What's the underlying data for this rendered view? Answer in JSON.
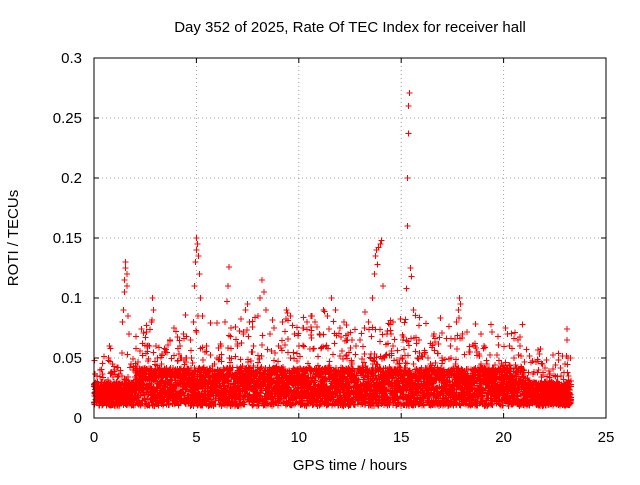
{
  "chart_data": {
    "type": "scatter",
    "title": "Day 352 of 2025, Rate Of TEC Index for receiver hall",
    "xlabel": "GPS time / hours",
    "ylabel": "ROTI / TECUs",
    "xlim": [
      0,
      25
    ],
    "ylim": [
      0,
      0.3
    ],
    "x_ticks": [
      0,
      5,
      10,
      15,
      20,
      25
    ],
    "x_tick_labels": [
      "0",
      "5",
      "10",
      "15",
      "20",
      "25"
    ],
    "y_ticks": [
      0,
      0.05,
      0.1,
      0.15,
      0.2,
      0.25,
      0.3
    ],
    "y_tick_labels": [
      "0",
      "0.05",
      "0.1",
      "0.15",
      "0.2",
      "0.25",
      "0.3"
    ],
    "grid": true,
    "marker": "plus",
    "color": "#ff0000",
    "series": [
      {
        "name": "ROTI",
        "points": [
          [
            0.05,
            0.02
          ],
          [
            0.15,
            0.035
          ],
          [
            0.3,
            0.04
          ],
          [
            0.4,
            0.03
          ],
          [
            0.6,
            0.025
          ],
          [
            0.7,
            0.05
          ],
          [
            0.75,
            0.06
          ],
          [
            0.8,
            0.058
          ],
          [
            0.9,
            0.045
          ],
          [
            1.0,
            0.04
          ],
          [
            1.2,
            0.035
          ],
          [
            1.4,
            0.08
          ],
          [
            1.45,
            0.09
          ],
          [
            1.5,
            0.105
          ],
          [
            1.5,
            0.115
          ],
          [
            1.55,
            0.125
          ],
          [
            1.55,
            0.13
          ],
          [
            1.6,
            0.12
          ],
          [
            1.6,
            0.11
          ],
          [
            1.65,
            0.085
          ],
          [
            1.7,
            0.07
          ],
          [
            1.8,
            0.045
          ],
          [
            1.9,
            0.04
          ],
          [
            2.1,
            0.03
          ],
          [
            2.3,
            0.025
          ],
          [
            2.5,
            0.04
          ],
          [
            2.7,
            0.06
          ],
          [
            2.8,
            0.08
          ],
          [
            2.85,
            0.1
          ],
          [
            2.9,
            0.09
          ],
          [
            3.1,
            0.05
          ],
          [
            3.3,
            0.045
          ],
          [
            3.5,
            0.055
          ],
          [
            3.7,
            0.065
          ],
          [
            3.9,
            0.075
          ],
          [
            4.0,
            0.072
          ],
          [
            4.2,
            0.06
          ],
          [
            4.5,
            0.05
          ],
          [
            4.7,
            0.065
          ],
          [
            4.85,
            0.08
          ],
          [
            4.9,
            0.11
          ],
          [
            4.95,
            0.13
          ],
          [
            5.0,
            0.14
          ],
          [
            5.0,
            0.15
          ],
          [
            5.05,
            0.145
          ],
          [
            5.1,
            0.135
          ],
          [
            5.15,
            0.12
          ],
          [
            5.2,
            0.1
          ],
          [
            5.3,
            0.085
          ],
          [
            5.5,
            0.06
          ],
          [
            5.7,
            0.04
          ],
          [
            6.0,
            0.05
          ],
          [
            6.2,
            0.06
          ],
          [
            6.4,
            0.08
          ],
          [
            6.5,
            0.097
          ],
          [
            6.55,
            0.11
          ],
          [
            6.6,
            0.126
          ],
          [
            6.7,
            0.075
          ],
          [
            7.0,
            0.06
          ],
          [
            7.3,
            0.07
          ],
          [
            7.4,
            0.09
          ],
          [
            7.5,
            0.095
          ],
          [
            7.6,
            0.08
          ],
          [
            7.8,
            0.06
          ],
          [
            8.0,
            0.085
          ],
          [
            8.1,
            0.1
          ],
          [
            8.2,
            0.115
          ],
          [
            8.3,
            0.105
          ],
          [
            8.4,
            0.09
          ],
          [
            8.6,
            0.07
          ],
          [
            8.8,
            0.075
          ],
          [
            9.0,
            0.06
          ],
          [
            9.2,
            0.08
          ],
          [
            9.4,
            0.09
          ],
          [
            9.6,
            0.085
          ],
          [
            9.8,
            0.07
          ],
          [
            10.0,
            0.06
          ],
          [
            10.2,
            0.075
          ],
          [
            10.4,
            0.08
          ],
          [
            10.6,
            0.085
          ],
          [
            10.8,
            0.08
          ],
          [
            11.0,
            0.07
          ],
          [
            11.2,
            0.09
          ],
          [
            11.4,
            0.085
          ],
          [
            11.6,
            0.1
          ],
          [
            11.8,
            0.09
          ],
          [
            12.0,
            0.075
          ],
          [
            12.2,
            0.08
          ],
          [
            12.4,
            0.07
          ],
          [
            12.6,
            0.065
          ],
          [
            12.8,
            0.06
          ],
          [
            13.0,
            0.065
          ],
          [
            13.2,
            0.075
          ],
          [
            13.4,
            0.08
          ],
          [
            13.6,
            0.1
          ],
          [
            13.7,
            0.12
          ],
          [
            13.75,
            0.135
          ],
          [
            13.8,
            0.14
          ],
          [
            13.85,
            0.128
          ],
          [
            13.9,
            0.142
          ],
          [
            14.0,
            0.145
          ],
          [
            14.05,
            0.148
          ],
          [
            14.1,
            0.11
          ],
          [
            14.3,
            0.07
          ],
          [
            14.6,
            0.06
          ],
          [
            15.0,
            0.05
          ],
          [
            15.1,
            0.065
          ],
          [
            15.2,
            0.082
          ],
          [
            15.25,
            0.108
          ],
          [
            15.3,
            0.16
          ],
          [
            15.3,
            0.2
          ],
          [
            15.35,
            0.237
          ],
          [
            15.35,
            0.26
          ],
          [
            15.4,
            0.271
          ],
          [
            15.45,
            0.125
          ],
          [
            15.5,
            0.118
          ],
          [
            15.6,
            0.09
          ],
          [
            15.8,
            0.05
          ],
          [
            16.0,
            0.04
          ],
          [
            16.3,
            0.05
          ],
          [
            16.6,
            0.07
          ],
          [
            17.0,
            0.05
          ],
          [
            17.4,
            0.06
          ],
          [
            17.7,
            0.08
          ],
          [
            17.8,
            0.09
          ],
          [
            17.85,
            0.1
          ],
          [
            17.9,
            0.095
          ],
          [
            18.0,
            0.07
          ],
          [
            18.3,
            0.055
          ],
          [
            18.6,
            0.06
          ],
          [
            18.9,
            0.045
          ],
          [
            19.2,
            0.04
          ],
          [
            19.5,
            0.035
          ],
          [
            19.9,
            0.045
          ],
          [
            20.1,
            0.075
          ],
          [
            20.2,
            0.07
          ],
          [
            20.3,
            0.06
          ],
          [
            20.4,
            0.058
          ],
          [
            20.5,
            0.05
          ],
          [
            20.7,
            0.065
          ],
          [
            20.8,
            0.06
          ],
          [
            21.0,
            0.04
          ],
          [
            21.3,
            0.03
          ],
          [
            21.7,
            0.04
          ],
          [
            21.9,
            0.045
          ],
          [
            22.0,
            0.03
          ],
          [
            22.3,
            0.025
          ],
          [
            22.6,
            0.03
          ],
          [
            22.8,
            0.035
          ],
          [
            23.0,
            0.045
          ],
          [
            23.1,
            0.065
          ],
          [
            23.1,
            0.074
          ],
          [
            23.15,
            0.05
          ],
          [
            23.2,
            0.03
          ],
          [
            23.25,
            0.02
          ]
        ]
      }
    ],
    "background_band": {
      "x_start": 0,
      "x_end": 23.3,
      "typical_min": 0.01,
      "typical_max": 0.03
    }
  }
}
